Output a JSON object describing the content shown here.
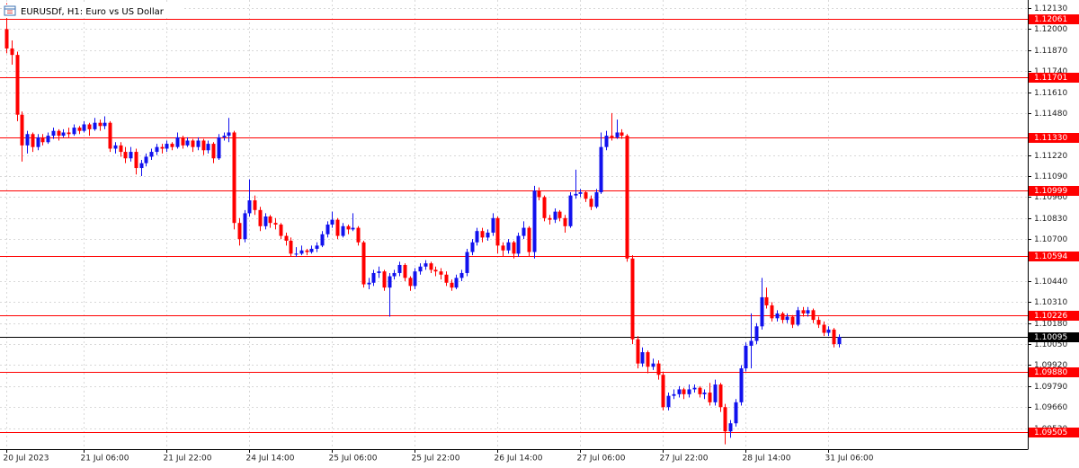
{
  "chart_data": {
    "type": "candlestick",
    "title": "EURUSDf, H1:  Euro vs US Dollar",
    "up_color": "#1111ee",
    "down_color": "#ff0000",
    "grid": true,
    "ylim": [
      1.094,
      1.1218
    ],
    "yticks": [
      {
        "value": 1.1213,
        "label": "1.12130"
      },
      {
        "value": 1.12,
        "label": "1.12000"
      },
      {
        "value": 1.1187,
        "label": "1.11870"
      },
      {
        "value": 1.1174,
        "label": "1.11740"
      },
      {
        "value": 1.1161,
        "label": "1.11610"
      },
      {
        "value": 1.1148,
        "label": "1.11480"
      },
      {
        "value": 1.1122,
        "label": "1.11220"
      },
      {
        "value": 1.1109,
        "label": "1.11090"
      },
      {
        "value": 1.1096,
        "label": "1.10960"
      },
      {
        "value": 1.1083,
        "label": "1.10830"
      },
      {
        "value": 1.107,
        "label": "1.10700"
      },
      {
        "value": 1.1044,
        "label": "1.10440"
      },
      {
        "value": 1.1031,
        "label": "1.10310"
      },
      {
        "value": 1.1018,
        "label": "1.10180"
      },
      {
        "value": 1.1005,
        "label": "1.10050"
      },
      {
        "value": 1.0992,
        "label": "1.09920"
      },
      {
        "value": 1.0979,
        "label": "1.09790"
      },
      {
        "value": 1.0966,
        "label": "1.09660"
      },
      {
        "value": 1.0953,
        "label": "1.09530"
      }
    ],
    "levels": [
      1.12061,
      1.11701,
      {
        "value": 1.1133,
        "label": "1.11330"
      },
      1.10999,
      1.10594,
      1.10226,
      {
        "value": 1.0988,
        "label": "1.09880"
      },
      1.09505
    ],
    "level_color": "#ff0000",
    "current_price": 1.10095,
    "current_color": "#000000",
    "categories": [
      "20 Jul 2023",
      null,
      null,
      null,
      null,
      null,
      null,
      null,
      null,
      null,
      null,
      null,
      null,
      null,
      null,
      "21 Jul 06:00",
      null,
      null,
      null,
      null,
      null,
      null,
      null,
      null,
      null,
      null,
      null,
      null,
      null,
      null,
      null,
      "21 Jul 22:00",
      null,
      null,
      null,
      null,
      null,
      null,
      null,
      null,
      null,
      null,
      null,
      null,
      null,
      null,
      null,
      "24 Jul 14:00",
      null,
      null,
      null,
      null,
      null,
      null,
      null,
      null,
      null,
      null,
      null,
      null,
      null,
      null,
      null,
      "25 Jul 06:00",
      null,
      null,
      null,
      null,
      null,
      null,
      null,
      null,
      null,
      null,
      null,
      null,
      null,
      null,
      null,
      "25 Jul 22:00",
      null,
      null,
      null,
      null,
      null,
      null,
      null,
      null,
      null,
      null,
      null,
      null,
      null,
      null,
      null,
      "26 Jul 14:00",
      null,
      null,
      null,
      null,
      null,
      null,
      null,
      null,
      null,
      null,
      null,
      null,
      null,
      null,
      null,
      "27 Jul 06:00",
      null,
      null,
      null,
      null,
      null,
      null,
      null,
      null,
      null,
      null,
      null,
      null,
      null,
      null,
      null,
      "27 Jul 22:00",
      null,
      null,
      null,
      null,
      null,
      null,
      null,
      null,
      null,
      null,
      null,
      null,
      null,
      null,
      null,
      "28 Jul 14:00",
      null,
      null,
      null,
      null,
      null,
      null,
      null,
      null,
      null,
      null,
      null,
      null,
      null,
      null,
      null,
      "31 Jul 06:00",
      null,
      null
    ],
    "ohlc": [
      [
        1.12,
        1.1216,
        1.1185,
        1.1188
      ],
      [
        1.1188,
        1.1193,
        1.1178,
        1.1184
      ],
      [
        1.1184,
        1.1186,
        1.1143,
        1.1147
      ],
      [
        1.1147,
        1.1149,
        1.1118,
        1.1128
      ],
      [
        1.1128,
        1.1137,
        1.1123,
        1.1135
      ],
      [
        1.1135,
        1.1136,
        1.1124,
        1.1127
      ],
      [
        1.1127,
        1.1135,
        1.1125,
        1.1133
      ],
      [
        1.1133,
        1.1135,
        1.1128,
        1.113
      ],
      [
        1.113,
        1.1136,
        1.1129,
        1.1134
      ],
      [
        1.1134,
        1.1139,
        1.1132,
        1.1137
      ],
      [
        1.1137,
        1.1138,
        1.1131,
        1.1134
      ],
      [
        1.1134,
        1.1138,
        1.1133,
        1.1136
      ],
      [
        1.1136,
        1.1139,
        1.1133,
        1.1135
      ],
      [
        1.1135,
        1.1141,
        1.1134,
        1.1139
      ],
      [
        1.1139,
        1.114,
        1.1135,
        1.1137
      ],
      [
        1.1137,
        1.1143,
        1.1136,
        1.1141
      ],
      [
        1.1141,
        1.1142,
        1.1134,
        1.1138
      ],
      [
        1.1138,
        1.1145,
        1.1137,
        1.1142
      ],
      [
        1.1142,
        1.1144,
        1.1137,
        1.114
      ],
      [
        1.114,
        1.1146,
        1.1138,
        1.1142
      ],
      [
        1.1142,
        1.1143,
        1.1124,
        1.1126
      ],
      [
        1.1126,
        1.113,
        1.1123,
        1.1128
      ],
      [
        1.1128,
        1.113,
        1.1121,
        1.1124
      ],
      [
        1.1124,
        1.1127,
        1.1117,
        1.112
      ],
      [
        1.112,
        1.1127,
        1.1118,
        1.1124
      ],
      [
        1.1124,
        1.1126,
        1.111,
        1.1114
      ],
      [
        1.1114,
        1.1119,
        1.1109,
        1.1117
      ],
      [
        1.1117,
        1.1123,
        1.1115,
        1.1121
      ],
      [
        1.1121,
        1.1126,
        1.1119,
        1.1124
      ],
      [
        1.1124,
        1.1129,
        1.1122,
        1.1127
      ],
      [
        1.1127,
        1.1129,
        1.1123,
        1.1126
      ],
      [
        1.1126,
        1.1131,
        1.1124,
        1.1129
      ],
      [
        1.1129,
        1.113,
        1.1125,
        1.1127
      ],
      [
        1.1127,
        1.1136,
        1.1126,
        1.1133
      ],
      [
        1.1133,
        1.1134,
        1.1126,
        1.1128
      ],
      [
        1.1128,
        1.1133,
        1.1127,
        1.1131
      ],
      [
        1.1131,
        1.1132,
        1.1124,
        1.1127
      ],
      [
        1.1127,
        1.1133,
        1.1125,
        1.1131
      ],
      [
        1.1131,
        1.1132,
        1.1122,
        1.1125
      ],
      [
        1.1125,
        1.1131,
        1.1123,
        1.1129
      ],
      [
        1.1129,
        1.113,
        1.1117,
        1.112
      ],
      [
        1.112,
        1.1135,
        1.1119,
        1.1133
      ],
      [
        1.1133,
        1.1136,
        1.1131,
        1.1134
      ],
      [
        1.1134,
        1.1145,
        1.113,
        1.1136
      ],
      [
        1.1136,
        1.1137,
        1.1076,
        1.108
      ],
      [
        1.108,
        1.1083,
        1.1066,
        1.107
      ],
      [
        1.107,
        1.1088,
        1.1068,
        1.1086
      ],
      [
        1.1086,
        1.1107,
        1.1084,
        1.1094
      ],
      [
        1.1094,
        1.1097,
        1.1085,
        1.1088
      ],
      [
        1.1088,
        1.109,
        1.1075,
        1.1078
      ],
      [
        1.1078,
        1.1086,
        1.1076,
        1.1084
      ],
      [
        1.1084,
        1.1085,
        1.1077,
        1.108
      ],
      [
        1.108,
        1.1083,
        1.1076,
        1.1079
      ],
      [
        1.1079,
        1.108,
        1.107,
        1.1072
      ],
      [
        1.1072,
        1.1074,
        1.1066,
        1.1069
      ],
      [
        1.1069,
        1.1071,
        1.1059,
        1.1061
      ],
      [
        1.1061,
        1.1065,
        1.1059,
        1.1061
      ],
      [
        1.1061,
        1.1066,
        1.106,
        1.1063
      ],
      [
        1.1063,
        1.1064,
        1.106,
        1.1062
      ],
      [
        1.1062,
        1.1066,
        1.1061,
        1.1064
      ],
      [
        1.1064,
        1.1068,
        1.1062,
        1.1066
      ],
      [
        1.1066,
        1.1075,
        1.1065,
        1.1073
      ],
      [
        1.1073,
        1.1081,
        1.1071,
        1.1079
      ],
      [
        1.1079,
        1.1087,
        1.1077,
        1.1082
      ],
      [
        1.1082,
        1.1083,
        1.107,
        1.1072
      ],
      [
        1.1072,
        1.108,
        1.1071,
        1.1078
      ],
      [
        1.1078,
        1.1079,
        1.1073,
        1.1076
      ],
      [
        1.1076,
        1.1086,
        1.1075,
        1.1077
      ],
      [
        1.1077,
        1.1078,
        1.1066,
        1.1068
      ],
      [
        1.1068,
        1.1069,
        1.104,
        1.1042
      ],
      [
        1.1042,
        1.1046,
        1.1039,
        1.1043
      ],
      [
        1.1043,
        1.1051,
        1.1041,
        1.1049
      ],
      [
        1.1049,
        1.1053,
        1.1046,
        1.105
      ],
      [
        1.105,
        1.1051,
        1.1038,
        1.104
      ],
      [
        1.104,
        1.1049,
        1.1022,
        1.1047
      ],
      [
        1.1047,
        1.1051,
        1.1045,
        1.1049
      ],
      [
        1.1049,
        1.1056,
        1.1047,
        1.1054
      ],
      [
        1.1054,
        1.1055,
        1.1044,
        1.1046
      ],
      [
        1.1046,
        1.1047,
        1.1038,
        1.1041
      ],
      [
        1.1041,
        1.1052,
        1.1039,
        1.105
      ],
      [
        1.105,
        1.1055,
        1.1048,
        1.1053
      ],
      [
        1.1053,
        1.1057,
        1.1051,
        1.1055
      ],
      [
        1.1055,
        1.1056,
        1.1049,
        1.1051
      ],
      [
        1.1051,
        1.1053,
        1.1047,
        1.105
      ],
      [
        1.105,
        1.1052,
        1.1045,
        1.1048
      ],
      [
        1.1048,
        1.105,
        1.1041,
        1.1043
      ],
      [
        1.1043,
        1.1045,
        1.1038,
        1.104
      ],
      [
        1.104,
        1.1048,
        1.1039,
        1.1046
      ],
      [
        1.1046,
        1.1051,
        1.1044,
        1.1049
      ],
      [
        1.1049,
        1.1064,
        1.1047,
        1.1062
      ],
      [
        1.1062,
        1.107,
        1.106,
        1.1068
      ],
      [
        1.1068,
        1.1077,
        1.1066,
        1.1075
      ],
      [
        1.1075,
        1.1077,
        1.1068,
        1.1071
      ],
      [
        1.1071,
        1.1076,
        1.1069,
        1.1074
      ],
      [
        1.1074,
        1.1086,
        1.1072,
        1.1083
      ],
      [
        1.1083,
        1.1084,
        1.1061,
        1.1066
      ],
      [
        1.1066,
        1.1068,
        1.1059,
        1.1063
      ],
      [
        1.1063,
        1.107,
        1.1061,
        1.1068
      ],
      [
        1.1068,
        1.1069,
        1.1058,
        1.1061
      ],
      [
        1.1061,
        1.1074,
        1.1059,
        1.1072
      ],
      [
        1.1072,
        1.1081,
        1.107,
        1.1077
      ],
      [
        1.1077,
        1.1078,
        1.1059,
        1.1062
      ],
      [
        1.1062,
        1.1103,
        1.1058,
        1.11
      ],
      [
        1.11,
        1.1102,
        1.1094,
        1.1096
      ],
      [
        1.1096,
        1.1097,
        1.1081,
        1.1083
      ],
      [
        1.1083,
        1.1085,
        1.1079,
        1.1082
      ],
      [
        1.1082,
        1.1089,
        1.108,
        1.1087
      ],
      [
        1.1087,
        1.1088,
        1.1081,
        1.1083
      ],
      [
        1.1083,
        1.1085,
        1.1074,
        1.1078
      ],
      [
        1.1078,
        1.1099,
        1.1077,
        1.1097
      ],
      [
        1.1097,
        1.1113,
        1.1095,
        1.1098
      ],
      [
        1.1098,
        1.1101,
        1.1096,
        1.1099
      ],
      [
        1.1099,
        1.11,
        1.1093,
        1.1095
      ],
      [
        1.1095,
        1.1097,
        1.1088,
        1.109
      ],
      [
        1.109,
        1.1101,
        1.1089,
        1.1099
      ],
      [
        1.1099,
        1.1136,
        1.1098,
        1.1127
      ],
      [
        1.1127,
        1.1137,
        1.1125,
        1.1134
      ],
      [
        1.1134,
        1.1148,
        1.1131,
        1.1133
      ],
      [
        1.1133,
        1.1144,
        1.1132,
        1.1136
      ],
      [
        1.1136,
        1.1138,
        1.1132,
        1.1134
      ],
      [
        1.1134,
        1.1135,
        1.1056,
        1.1058
      ],
      [
        1.1058,
        1.106,
        1.1005,
        1.1008
      ],
      [
        1.1008,
        1.101,
        1.099,
        1.0993
      ],
      [
        1.0993,
        1.1003,
        1.0991,
        1.1
      ],
      [
        1.1,
        1.1001,
        1.0987,
        1.0991
      ],
      [
        1.0991,
        1.0996,
        1.0989,
        1.0993
      ],
      [
        1.0993,
        1.0995,
        1.0983,
        1.0986
      ],
      [
        1.0986,
        1.0988,
        1.0964,
        1.0966
      ],
      [
        1.0966,
        1.0975,
        1.0964,
        1.0973
      ],
      [
        1.0973,
        1.0977,
        1.0971,
        1.0974
      ],
      [
        1.0974,
        1.0979,
        1.0972,
        1.0977
      ],
      [
        1.0977,
        1.0978,
        1.0971,
        1.0974
      ],
      [
        1.0974,
        1.098,
        1.0972,
        1.0977
      ],
      [
        1.0977,
        1.098,
        1.0975,
        1.0978
      ],
      [
        1.0978,
        1.0979,
        1.0972,
        1.0974
      ],
      [
        1.0974,
        1.0977,
        1.0971,
        1.0975
      ],
      [
        1.0975,
        1.0981,
        1.0967,
        1.0969
      ],
      [
        1.0969,
        1.0983,
        1.0967,
        1.098
      ],
      [
        1.098,
        1.0981,
        1.0963,
        1.0966
      ],
      [
        1.0966,
        1.0968,
        1.0943,
        1.0951
      ],
      [
        1.0951,
        1.0958,
        1.0947,
        1.0956
      ],
      [
        1.0956,
        1.0971,
        1.0954,
        1.0969
      ],
      [
        1.0969,
        1.0992,
        1.0967,
        1.099
      ],
      [
        1.099,
        1.1006,
        1.0988,
        1.1004
      ],
      [
        1.1004,
        1.1024,
        1.099,
        1.1007
      ],
      [
        1.1007,
        1.1018,
        1.1005,
        1.1016
      ],
      [
        1.1016,
        1.1046,
        1.1014,
        1.1034
      ],
      [
        1.1034,
        1.104,
        1.1027,
        1.1029
      ],
      [
        1.1029,
        1.1031,
        1.1019,
        1.1021
      ],
      [
        1.1021,
        1.1026,
        1.1019,
        1.1024
      ],
      [
        1.1024,
        1.1025,
        1.1018,
        1.102
      ],
      [
        1.102,
        1.1024,
        1.1018,
        1.1022
      ],
      [
        1.1022,
        1.1023,
        1.1015,
        1.1017
      ],
      [
        1.1017,
        1.1028,
        1.1016,
        1.1026
      ],
      [
        1.1026,
        1.1028,
        1.1022,
        1.1024
      ],
      [
        1.1024,
        1.1028,
        1.1022,
        1.1026
      ],
      [
        1.1026,
        1.1027,
        1.1018,
        1.102
      ],
      [
        1.102,
        1.1022,
        1.1015,
        1.1017
      ],
      [
        1.1017,
        1.1019,
        1.101,
        1.1012
      ],
      [
        1.1012,
        1.1016,
        1.101,
        1.1014
      ],
      [
        1.1014,
        1.1015,
        1.1003,
        1.1005
      ],
      [
        1.1005,
        1.1011,
        1.1003,
        1.10095
      ]
    ]
  }
}
